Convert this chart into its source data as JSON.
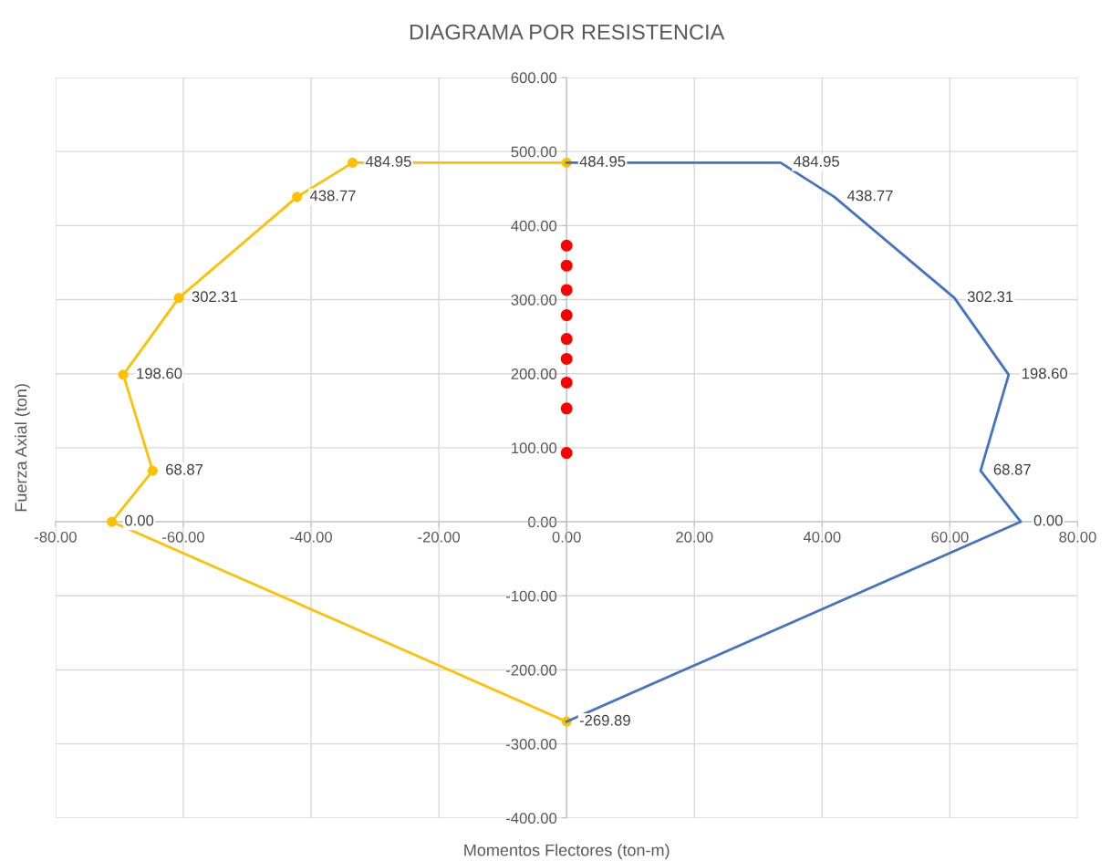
{
  "chart_data": {
    "type": "line",
    "title": "DIAGRAMA POR RESISTENCIA",
    "xlabel": "Momentos Flectores (ton-m)",
    "ylabel": "Fuerza Axial (ton)",
    "series": [
      {
        "color": "#ffc000",
        "marker": "circle",
        "x": [
          0,
          -33.5,
          -42.2,
          -60.7,
          -69.4,
          -64.8,
          -71.2,
          0
        ],
        "values": [
          484.95,
          484.95,
          438.77,
          302.31,
          198.6,
          68.87,
          0.0,
          -269.89
        ],
        "value_labels": [
          "484.95",
          "484.95",
          "438.77",
          "302.31",
          "198.60",
          "68.87",
          "0.00",
          "-269.89"
        ]
      },
      {
        "color": "#4472c4",
        "marker": "none",
        "x": [
          0,
          33.5,
          41.9,
          60.7,
          69.2,
          64.8,
          71.1,
          0
        ],
        "values": [
          484.95,
          484.95,
          438.77,
          302.31,
          198.6,
          68.87,
          0.0,
          -269.89
        ],
        "value_labels": [
          null,
          "484.95",
          "438.77",
          "302.31",
          "198.60",
          "68.87",
          "0.00",
          null
        ]
      },
      {
        "type": "scatter",
        "color": "#ff0000",
        "marker": "circle",
        "x": [
          0,
          0,
          0,
          0,
          0,
          0,
          0,
          0,
          0
        ],
        "values": [
          373,
          346,
          313,
          279,
          247,
          220,
          188,
          153,
          93
        ]
      }
    ],
    "xlim": [
      -80,
      80
    ],
    "ylim": [
      -400,
      600
    ],
    "xticks": [
      {
        "value": -80,
        "label": "-80.00"
      },
      {
        "value": -60,
        "label": "-60.00"
      },
      {
        "value": -40,
        "label": "-40.00"
      },
      {
        "value": -20,
        "label": "-20.00"
      },
      {
        "value": 0,
        "label": "0.00"
      },
      {
        "value": 20,
        "label": "20.00"
      },
      {
        "value": 40,
        "label": "40.00"
      },
      {
        "value": 60,
        "label": "60.00"
      },
      {
        "value": 80,
        "label": "80.00"
      }
    ],
    "yticks": [
      {
        "value": -400,
        "label": "-400.00"
      },
      {
        "value": -300,
        "label": "-300.00"
      },
      {
        "value": -200,
        "label": "-200.00"
      },
      {
        "value": -100,
        "label": "-100.00"
      },
      {
        "value": 0,
        "label": "0.00"
      },
      {
        "value": 100,
        "label": "100.00"
      },
      {
        "value": 200,
        "label": "200.00"
      },
      {
        "value": 300,
        "label": "300.00"
      },
      {
        "value": 400,
        "label": "400.00"
      },
      {
        "value": 500,
        "label": "500.00"
      },
      {
        "value": 600,
        "label": "600.00"
      }
    ],
    "grid": true,
    "legend": false
  }
}
